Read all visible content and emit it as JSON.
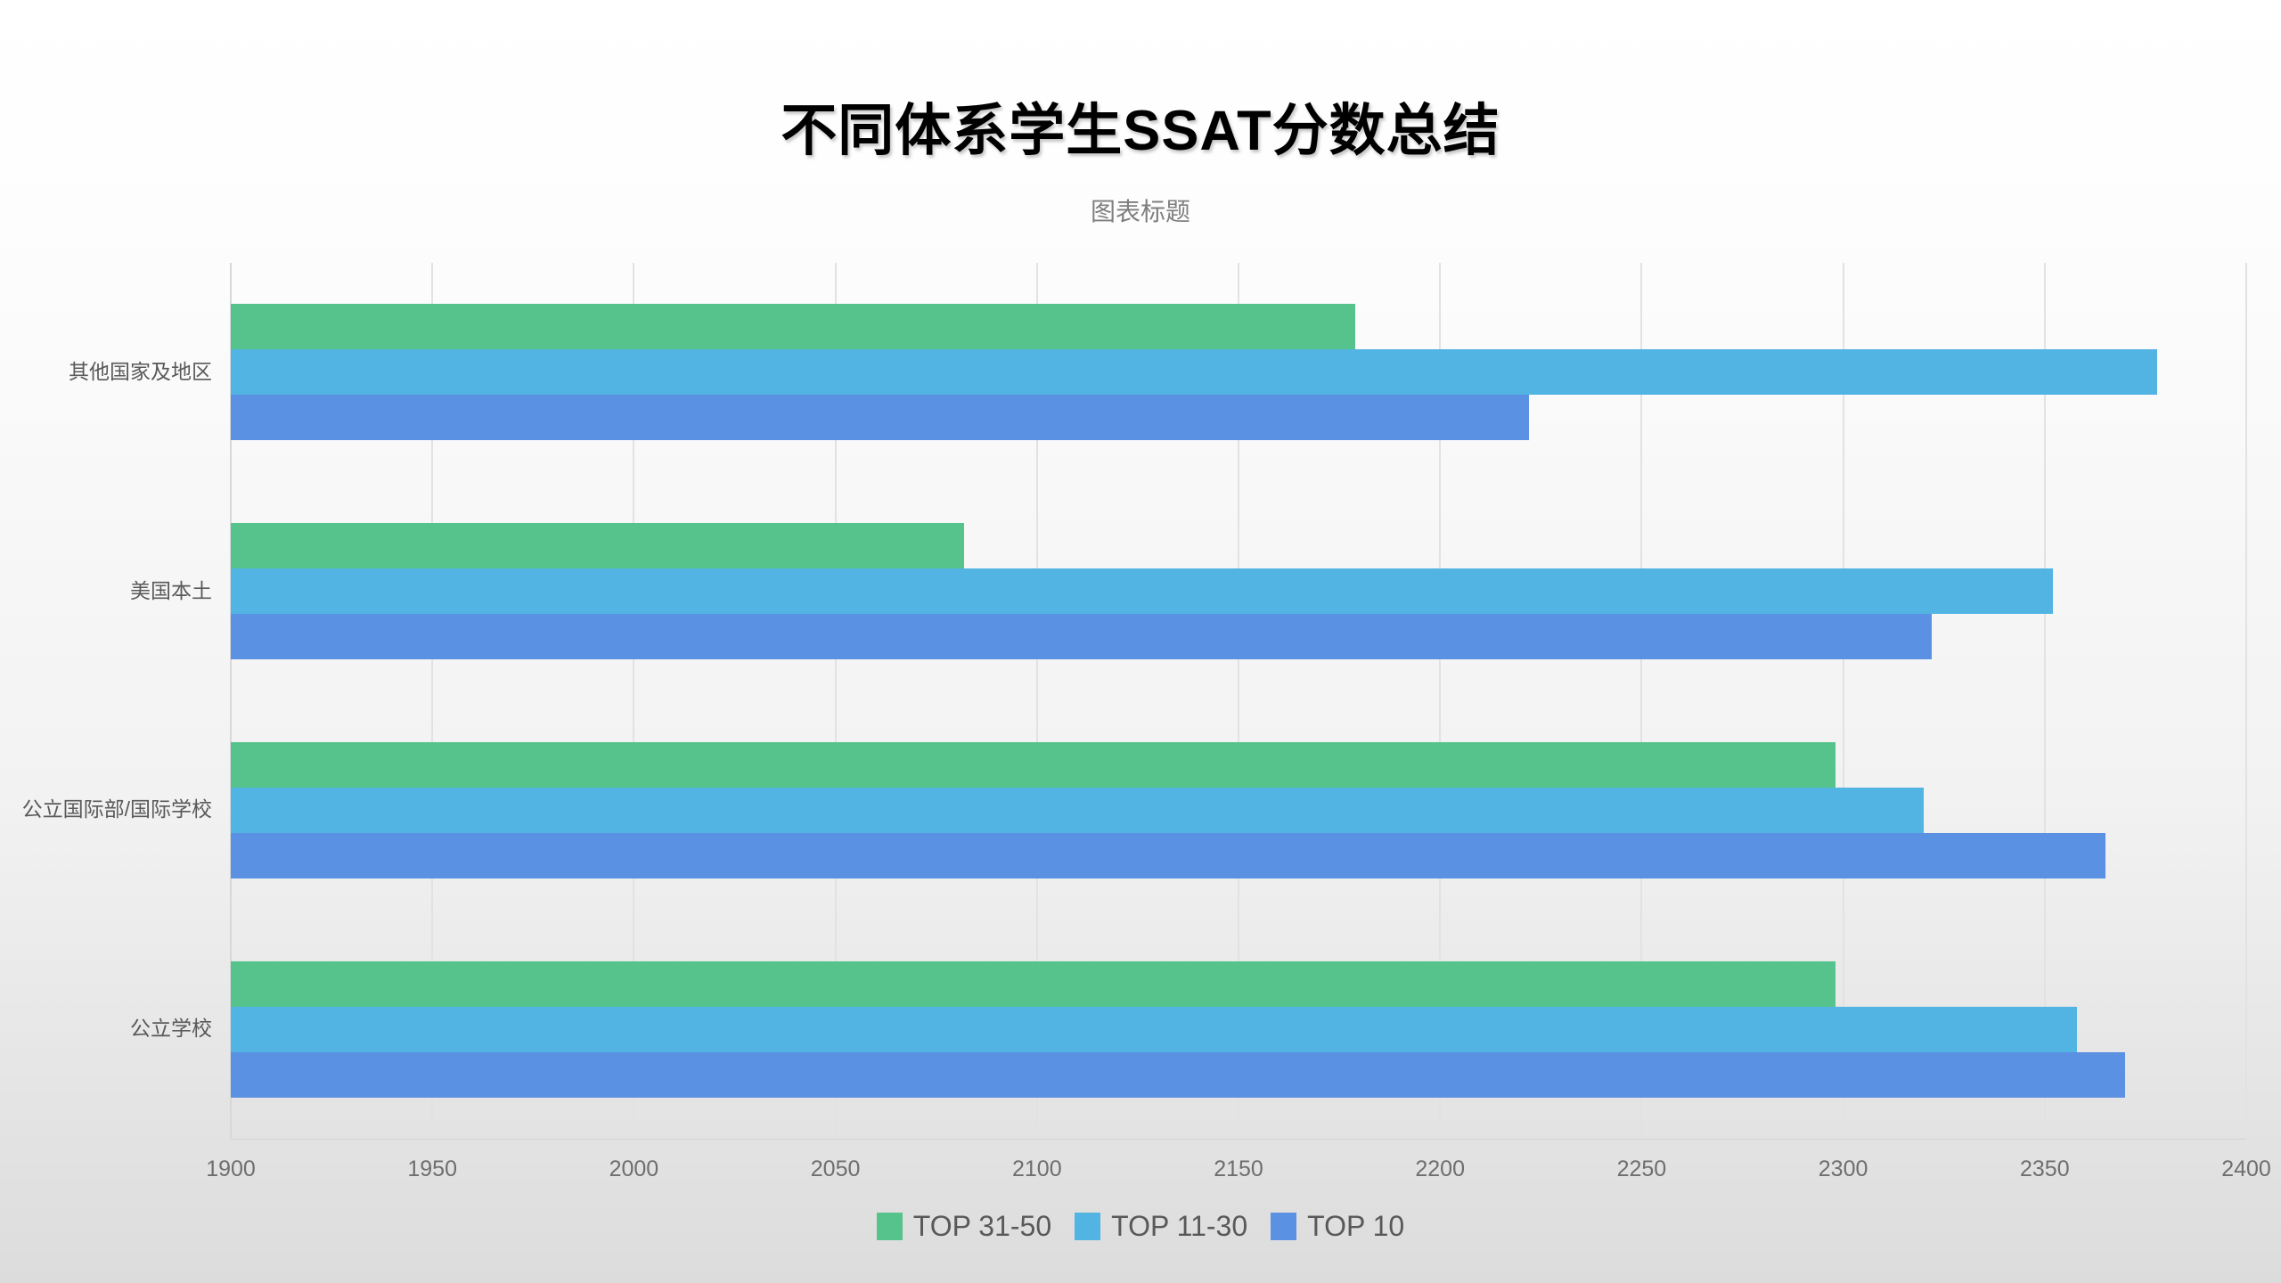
{
  "header": {
    "title": "不同体系学生SSAT分数总结",
    "subtitle": "图表标题"
  },
  "chart_data": {
    "type": "bar",
    "orientation": "horizontal",
    "title": "不同体系学生SSAT分数总结",
    "subtitle": "图表标题",
    "categories": [
      "其他国家及地区",
      "美国本土",
      "公立国际部/国际学校",
      "公立学校"
    ],
    "series": [
      {
        "name": "TOP 31-50",
        "color": "#57C38C",
        "values": [
          2179,
          2082,
          2298,
          2298
        ]
      },
      {
        "name": "TOP 11-30",
        "color": "#52B4E2",
        "values": [
          2378,
          2352,
          2320,
          2358
        ]
      },
      {
        "name": "TOP 10",
        "color": "#5A91E2",
        "values": [
          2222,
          2322,
          2365,
          2370
        ]
      }
    ],
    "xlim": [
      1900,
      2400
    ],
    "xticks": [
      1900,
      1950,
      2000,
      2050,
      2100,
      2150,
      2200,
      2250,
      2300,
      2350,
      2400
    ],
    "grid": "vertical-only",
    "legend_position": "bottom"
  },
  "style_colors": {
    "gridline": "#e2e2e2",
    "axis_label": "#6e6e6e",
    "category_label": "#595959",
    "legend_text": "#595959",
    "subtitle_text": "#7f7f7f",
    "title_text": "#000000"
  }
}
